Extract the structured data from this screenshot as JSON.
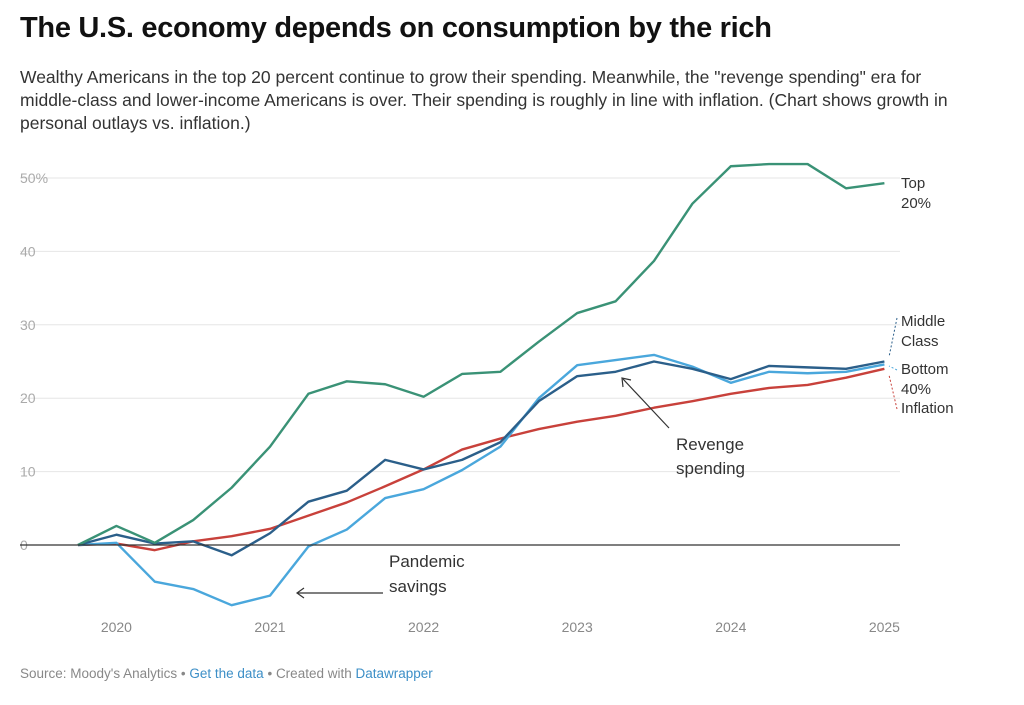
{
  "title": "The U.S. economy depends on consumption by the rich",
  "subtitle": "Wealthy Americans in the top 20 percent continue to grow their spending. Meanwhile, the \"revenge spending\" era for middle-class and lower-income Americans is over. Their spending is roughly in line with inflation. (Chart shows growth in personal outlays vs. inflation.)",
  "footer": {
    "source": "Source: Moody's Analytics",
    "sep": " • ",
    "get_data": "Get the data",
    "created": "Created with",
    "tool": "Datawrapper"
  },
  "chart_data": {
    "type": "line",
    "x": [
      "2019 Q4",
      "2020 Q1",
      "2020 Q2",
      "2020 Q3",
      "2020 Q4",
      "2021 Q1",
      "2021 Q2",
      "2021 Q3",
      "2021 Q4",
      "2022 Q1",
      "2022 Q2",
      "2022 Q3",
      "2022 Q4",
      "2023 Q1",
      "2023 Q2",
      "2023 Q3",
      "2023 Q4",
      "2024 Q1",
      "2024 Q2",
      "2024 Q3",
      "2024 Q4",
      "2025 Q1"
    ],
    "xticks": [
      "2020",
      "2021",
      "2022",
      "2023",
      "2024",
      "2025"
    ],
    "yticks": [
      "0",
      "10",
      "20",
      "30",
      "40",
      "50%"
    ],
    "ylim": [
      -10,
      53
    ],
    "grid": true,
    "series": [
      {
        "name": "Top 20%",
        "label_lines": [
          "Top",
          "20%"
        ],
        "color": "#3a9276",
        "values": [
          0,
          2.6,
          0.3,
          3.4,
          7.8,
          13.4,
          20.6,
          22.3,
          21.9,
          20.2,
          23.3,
          23.6,
          27.7,
          31.6,
          33.2,
          38.7,
          46.5,
          51.6,
          51.9,
          51.9,
          48.6,
          49.3
        ]
      },
      {
        "name": "Middle Class",
        "label_lines": [
          "Middle",
          "Class"
        ],
        "color": "#2b5f8a",
        "values": [
          0,
          1.4,
          0.2,
          0.5,
          -1.4,
          1.6,
          5.9,
          7.4,
          11.6,
          10.3,
          11.6,
          14.0,
          19.6,
          23.0,
          23.6,
          25.0,
          24.0,
          22.6,
          24.4,
          24.2,
          24.0,
          25.0
        ]
      },
      {
        "name": "Bottom 40%",
        "label_lines": [
          "Bottom",
          "40%"
        ],
        "color": "#4aa7dc",
        "values": [
          0,
          0.3,
          -5.0,
          -6.0,
          -8.2,
          -6.9,
          -0.2,
          2.1,
          6.4,
          7.6,
          10.2,
          13.4,
          20.0,
          24.5,
          25.2,
          25.9,
          24.3,
          22.1,
          23.6,
          23.4,
          23.6,
          24.6
        ]
      },
      {
        "name": "Inflation",
        "label_lines": [
          "Inflation"
        ],
        "color": "#c8413b",
        "values": [
          0,
          0.2,
          -0.7,
          0.5,
          1.2,
          2.2,
          4.0,
          5.8,
          8.0,
          10.3,
          13.0,
          14.5,
          15.8,
          16.8,
          17.6,
          18.7,
          19.6,
          20.6,
          21.4,
          21.8,
          22.8,
          24.0
        ]
      }
    ],
    "annotations": [
      {
        "lines": [
          "Pandemic",
          "savings"
        ]
      },
      {
        "lines": [
          "Revenge",
          "spending"
        ]
      }
    ]
  }
}
